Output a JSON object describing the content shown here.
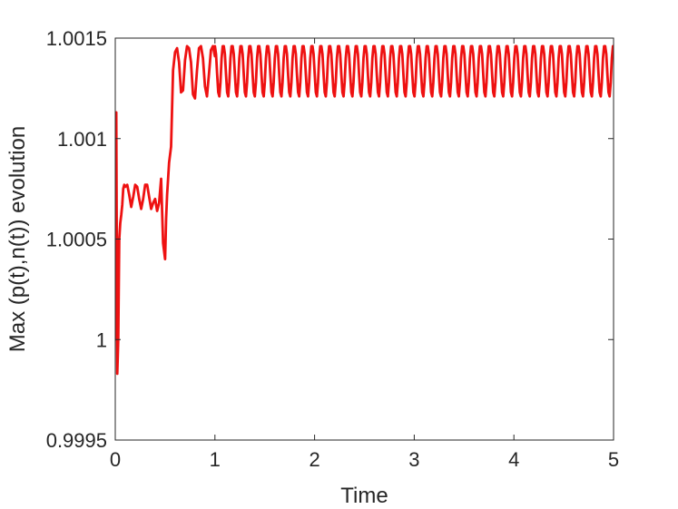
{
  "chart_data": {
    "type": "line",
    "title": "",
    "xlabel": "Time",
    "ylabel": "Max (p(t),n(t)) evolution",
    "xlim": [
      0,
      5
    ],
    "ylim": [
      0.9995,
      1.0015
    ],
    "x_ticks": [
      0,
      1,
      2,
      3,
      4,
      5
    ],
    "x_tick_labels": [
      "0",
      "1",
      "2",
      "3",
      "4",
      "5"
    ],
    "y_ticks": [
      0.9995,
      1.0,
      1.0005,
      1.001,
      1.0015
    ],
    "y_tick_labels": [
      "0.9995",
      "1",
      "1.0005",
      "1.001",
      "1.0015"
    ],
    "grid": false,
    "box": true,
    "series": [
      {
        "color": "#ee1111",
        "x": [
          0.0,
          0.01,
          0.02,
          0.03,
          0.04,
          0.05,
          0.06,
          0.07,
          0.08,
          0.09,
          0.1,
          0.12,
          0.14,
          0.16,
          0.18,
          0.2,
          0.22,
          0.24,
          0.26,
          0.28,
          0.3,
          0.32,
          0.34,
          0.36,
          0.38,
          0.4,
          0.42,
          0.44,
          0.46,
          0.48,
          0.5,
          0.51,
          0.52,
          0.54,
          0.56,
          0.58,
          0.6,
          0.62,
          0.64,
          0.66,
          0.68,
          0.7,
          0.72,
          0.74,
          0.76,
          0.78,
          0.8,
          0.82,
          0.84,
          0.86,
          0.88,
          0.9,
          0.92,
          0.94,
          0.96,
          0.98,
          1.0
        ],
        "y": [
          1.0,
          1.00113,
          0.99983,
          1.0,
          1.0005,
          1.00058,
          1.00062,
          1.00067,
          1.00075,
          1.00077,
          1.00076,
          1.00077,
          1.00072,
          1.00066,
          1.00071,
          1.00077,
          1.00076,
          1.0007,
          1.00065,
          1.0007,
          1.00077,
          1.00077,
          1.00071,
          1.00065,
          1.00068,
          1.0007,
          1.00064,
          1.00068,
          1.0008,
          1.00048,
          1.0004,
          1.0006,
          1.00072,
          1.00088,
          1.00096,
          1.00134,
          1.00143,
          1.00145,
          1.00138,
          1.00123,
          1.00124,
          1.00139,
          1.00146,
          1.00145,
          1.00138,
          1.00122,
          1.0012,
          1.00134,
          1.00145,
          1.00146,
          1.0014,
          1.00126,
          1.00121,
          1.00132,
          1.00144,
          1.00146,
          1.00141
        ]
      },
      {
        "color": "#ee1111",
        "periodic_segment": true,
        "x_start": 1.0,
        "x_end": 5.0,
        "period": 0.089,
        "values_over_one_period": [
          1.00146,
          1.00142,
          1.00132,
          1.00123,
          1.00121,
          1.00128,
          1.0014,
          1.00146,
          1.00146
        ]
      }
    ]
  }
}
